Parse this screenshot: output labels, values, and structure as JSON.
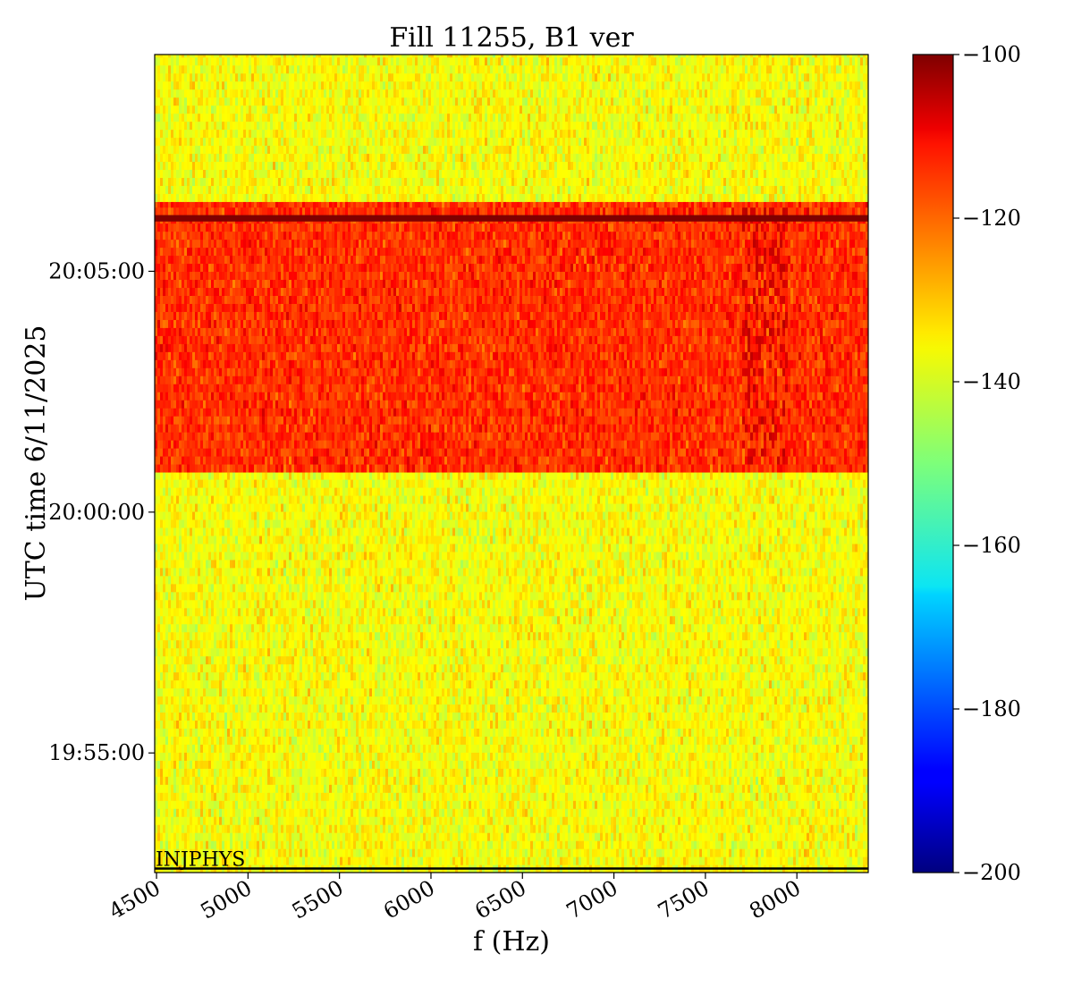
{
  "chart_data": {
    "type": "heatmap",
    "title": "Fill 11255, B1 ver",
    "xlabel": "f (Hz)",
    "ylabel": "UTC time 6/11/2025",
    "x_ticks": [
      4500,
      5000,
      5500,
      6000,
      6500,
      7000,
      7500,
      8000
    ],
    "xlim": [
      4490,
      8390
    ],
    "y_ticks": [
      "19:55:00",
      "20:00:00",
      "20:05:00"
    ],
    "ylim": [
      "19:52:31",
      "20:09:30"
    ],
    "colormap": "jet",
    "colorbar": {
      "ticks": [
        -100,
        -120,
        -140,
        -160,
        -180,
        -200
      ],
      "range": [
        -200,
        -100
      ]
    },
    "regions": [
      {
        "time_start": "19:52:31",
        "time_end": "20:00:50",
        "level_mean": -138,
        "level_spread": 6
      },
      {
        "time_start": "20:00:50",
        "time_end": "20:06:27",
        "level_mean": -117,
        "level_spread": 6
      },
      {
        "time_start": "20:06:02",
        "time_end": "20:06:10",
        "level_mean": -100,
        "level_spread": 0
      },
      {
        "time_start": "20:06:27",
        "time_end": "20:09:30",
        "level_mean": -138,
        "level_spread": 6
      }
    ],
    "features": [
      {
        "freq_start": 7700,
        "freq_end": 7950,
        "time_start": "20:01:00",
        "time_end": "20:06:10",
        "level": -108
      }
    ],
    "annotations": [
      {
        "text": "INJPHYS",
        "time": "19:52:36"
      }
    ]
  }
}
